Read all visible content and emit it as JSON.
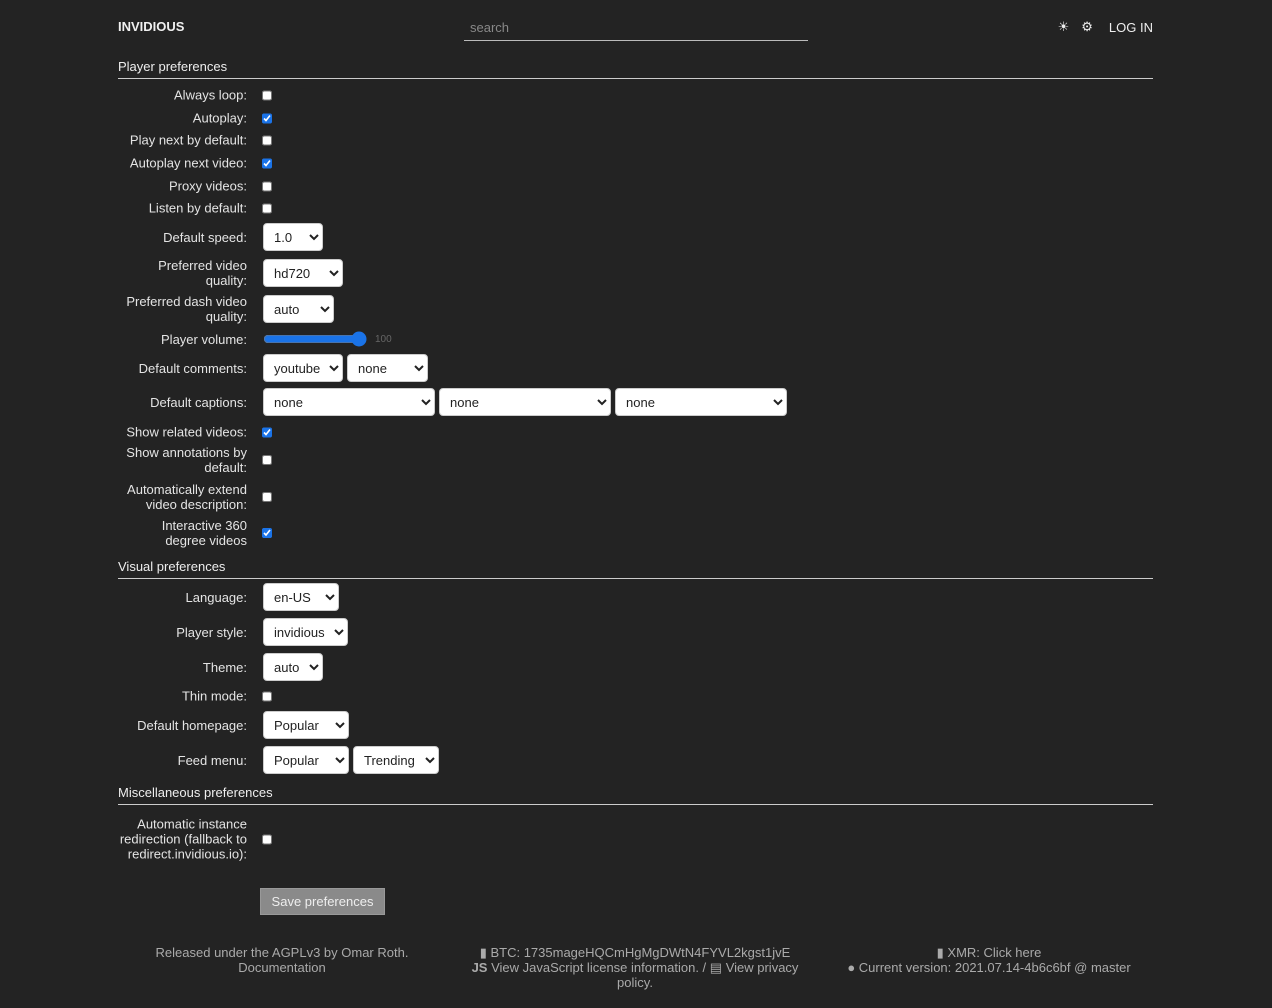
{
  "header": {
    "brand": "INVIDIOUS",
    "search_placeholder": "search",
    "theme_icon": "sun-icon",
    "settings_icon": "gear-icon",
    "login": "LOG IN"
  },
  "player": {
    "title": "Player preferences",
    "always_loop": {
      "label": "Always loop:",
      "checked": false
    },
    "autoplay": {
      "label": "Autoplay:",
      "checked": true
    },
    "play_next": {
      "label": "Play next by default:",
      "checked": false
    },
    "autoplay_next": {
      "label": "Autoplay next video:",
      "checked": true
    },
    "proxy": {
      "label": "Proxy videos:",
      "checked": false
    },
    "listen": {
      "label": "Listen by default:",
      "checked": false
    },
    "speed": {
      "label": "Default speed:",
      "value": "1.0"
    },
    "quality": {
      "label": "Preferred video quality:",
      "value": "hd720"
    },
    "dash": {
      "label": "Preferred dash video quality:",
      "value": "auto"
    },
    "volume": {
      "label": "Player volume:",
      "value": "100"
    },
    "comments": {
      "label": "Default comments:",
      "values": [
        "youtube",
        "none"
      ]
    },
    "captions": {
      "label": "Default captions:",
      "values": [
        "none",
        "none",
        "none"
      ]
    },
    "related": {
      "label": "Show related videos:",
      "checked": true
    },
    "annotations": {
      "label": "Show annotations by default:",
      "checked": false
    },
    "extend": {
      "label": "Automatically extend video description:",
      "checked": false
    },
    "vr": {
      "label": "Interactive 360 degree videos",
      "checked": true
    }
  },
  "visual": {
    "title": "Visual preferences",
    "language": {
      "label": "Language:",
      "value": "en-US"
    },
    "style": {
      "label": "Player style:",
      "value": "invidious"
    },
    "theme": {
      "label": "Theme:",
      "value": "auto"
    },
    "thin": {
      "label": "Thin mode:",
      "checked": false
    },
    "homepage": {
      "label": "Default homepage:",
      "value": "Popular"
    },
    "feed": {
      "label": "Feed menu:",
      "values": [
        "Popular",
        "Trending"
      ]
    }
  },
  "misc": {
    "title": "Miscellaneous preferences",
    "redirect": {
      "label": "Automatic instance redirection (fallback to redirect.invidious.io):",
      "checked": false
    }
  },
  "save": "Save preferences",
  "footer": {
    "released": "Released under the AGPLv3 by Omar Roth.",
    "docs": "Documentation",
    "btc": "BTC: 1735mageHQCmHgMgDWtN4FYVL2kgst1jvE",
    "js": "View JavaScript license information.",
    "sep": " / ",
    "privacy": "View privacy policy.",
    "xmr": "XMR: Click here",
    "version": "Current version: 2021.07.14-4b6c6bf @ master"
  }
}
